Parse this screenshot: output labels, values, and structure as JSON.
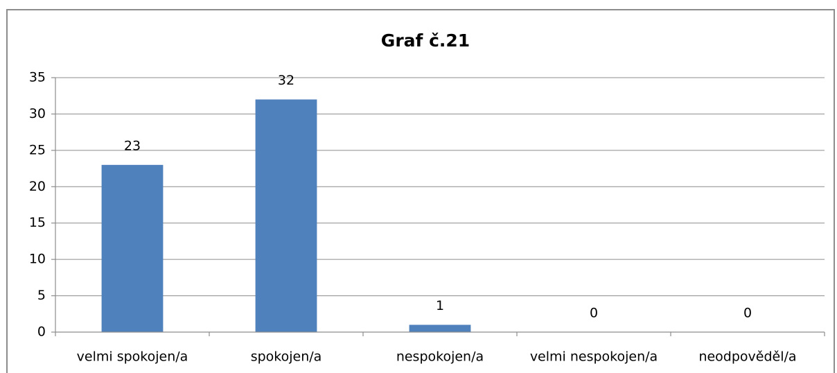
{
  "chart_data": {
    "type": "bar",
    "title": "Graf č.21",
    "categories": [
      "velmi spokojen/a",
      "spokojen/a",
      "nespokojen/a",
      "velmi nespokojen/a",
      "neodpověděl/a"
    ],
    "values": [
      23,
      32,
      1,
      0,
      0
    ],
    "color": "#4f81bd",
    "ylim": [
      0,
      35
    ],
    "yticks": [
      0,
      5,
      10,
      15,
      20,
      25,
      30,
      35
    ],
    "grid": true
  }
}
